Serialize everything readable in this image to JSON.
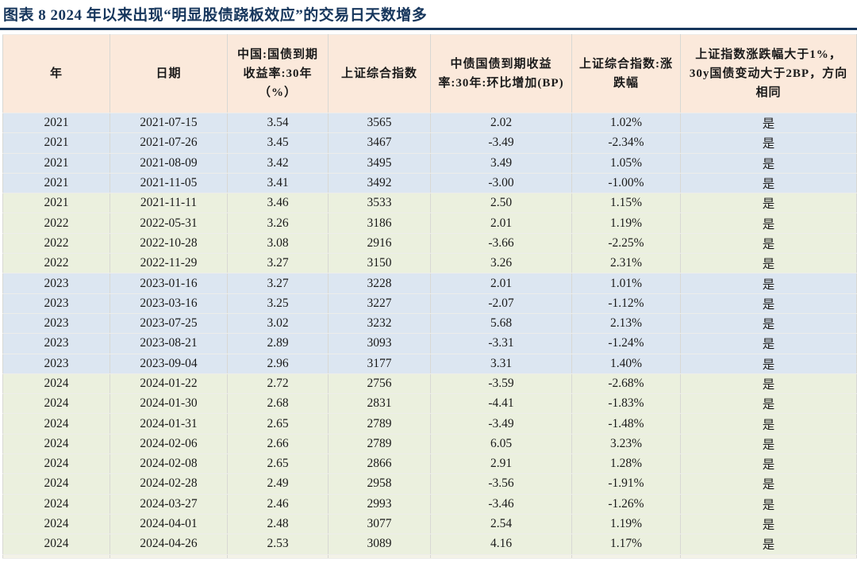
{
  "figure": {
    "title": "图表 8  2024 年以来出现“明显股债跷板效应”的交易日天数增多",
    "title_color": "#16365c",
    "divider_color": "#16365c"
  },
  "table": {
    "colors": {
      "header_bg": "#fbe9db",
      "row_blue": "#dce6f1",
      "row_green": "#ebf0de",
      "partial_bg": "#f3f2e7",
      "border_h": "#ededea",
      "border_v": "#d8d8d4",
      "text": "#1a1a1a"
    },
    "columns": [
      {
        "label": "年"
      },
      {
        "label": "日期"
      },
      {
        "label": "中国:国债到期收益率:30年（%）"
      },
      {
        "label": "上证综合指数"
      },
      {
        "label": "中债国债到期收益率:30年:环比增加(BP)"
      },
      {
        "label": "上证综合指数:涨跌幅"
      },
      {
        "label": "上证指数涨跌幅大于1%，30y国债变动大于2BP，方向相同"
      }
    ],
    "rows": [
      {
        "tone": "blue",
        "cells": [
          "2021",
          "2021-07-15",
          "3.54",
          "3565",
          "2.02",
          "1.02%",
          "是"
        ]
      },
      {
        "tone": "blue",
        "cells": [
          "2021",
          "2021-07-26",
          "3.45",
          "3467",
          "-3.49",
          "-2.34%",
          "是"
        ]
      },
      {
        "tone": "blue",
        "cells": [
          "2021",
          "2021-08-09",
          "3.42",
          "3495",
          "3.49",
          "1.05%",
          "是"
        ]
      },
      {
        "tone": "blue",
        "cells": [
          "2021",
          "2021-11-05",
          "3.41",
          "3492",
          "-3.00",
          "-1.00%",
          "是"
        ]
      },
      {
        "tone": "green",
        "cells": [
          "2021",
          "2021-11-11",
          "3.46",
          "3533",
          "2.50",
          "1.15%",
          "是"
        ]
      },
      {
        "tone": "green",
        "cells": [
          "2022",
          "2022-05-31",
          "3.26",
          "3186",
          "2.01",
          "1.19%",
          "是"
        ]
      },
      {
        "tone": "green",
        "cells": [
          "2022",
          "2022-10-28",
          "3.08",
          "2916",
          "-3.66",
          "-2.25%",
          "是"
        ]
      },
      {
        "tone": "green",
        "cells": [
          "2022",
          "2022-11-29",
          "3.27",
          "3150",
          "3.26",
          "2.31%",
          "是"
        ]
      },
      {
        "tone": "blue",
        "cells": [
          "2023",
          "2023-01-16",
          "3.27",
          "3228",
          "2.01",
          "1.01%",
          "是"
        ]
      },
      {
        "tone": "blue",
        "cells": [
          "2023",
          "2023-03-16",
          "3.25",
          "3227",
          "-2.07",
          "-1.12%",
          "是"
        ]
      },
      {
        "tone": "blue",
        "cells": [
          "2023",
          "2023-07-25",
          "3.02",
          "3232",
          "5.68",
          "2.13%",
          "是"
        ]
      },
      {
        "tone": "blue",
        "cells": [
          "2023",
          "2023-08-21",
          "2.89",
          "3093",
          "-3.31",
          "-1.24%",
          "是"
        ]
      },
      {
        "tone": "blue",
        "cells": [
          "2023",
          "2023-09-04",
          "2.96",
          "3177",
          "3.31",
          "1.40%",
          "是"
        ]
      },
      {
        "tone": "green",
        "cells": [
          "2024",
          "2024-01-22",
          "2.72",
          "2756",
          "-3.59",
          "-2.68%",
          "是"
        ]
      },
      {
        "tone": "green",
        "cells": [
          "2024",
          "2024-01-30",
          "2.68",
          "2831",
          "-4.41",
          "-1.83%",
          "是"
        ]
      },
      {
        "tone": "green",
        "cells": [
          "2024",
          "2024-01-31",
          "2.65",
          "2789",
          "-3.49",
          "-1.48%",
          "是"
        ]
      },
      {
        "tone": "green",
        "cells": [
          "2024",
          "2024-02-06",
          "2.66",
          "2789",
          "6.05",
          "3.23%",
          "是"
        ]
      },
      {
        "tone": "green",
        "cells": [
          "2024",
          "2024-02-08",
          "2.65",
          "2866",
          "2.91",
          "1.28%",
          "是"
        ]
      },
      {
        "tone": "green",
        "cells": [
          "2024",
          "2024-02-28",
          "2.49",
          "2958",
          "-3.56",
          "-1.91%",
          "是"
        ]
      },
      {
        "tone": "green",
        "cells": [
          "2024",
          "2024-03-27",
          "2.46",
          "2993",
          "-3.46",
          "-1.26%",
          "是"
        ]
      },
      {
        "tone": "green",
        "cells": [
          "2024",
          "2024-04-01",
          "2.48",
          "3077",
          "2.54",
          "1.19%",
          "是"
        ]
      },
      {
        "tone": "green",
        "cells": [
          "2024",
          "2024-04-26",
          "2.53",
          "3089",
          "4.16",
          "1.17%",
          "是"
        ]
      }
    ],
    "partial_bottom_row": true
  }
}
